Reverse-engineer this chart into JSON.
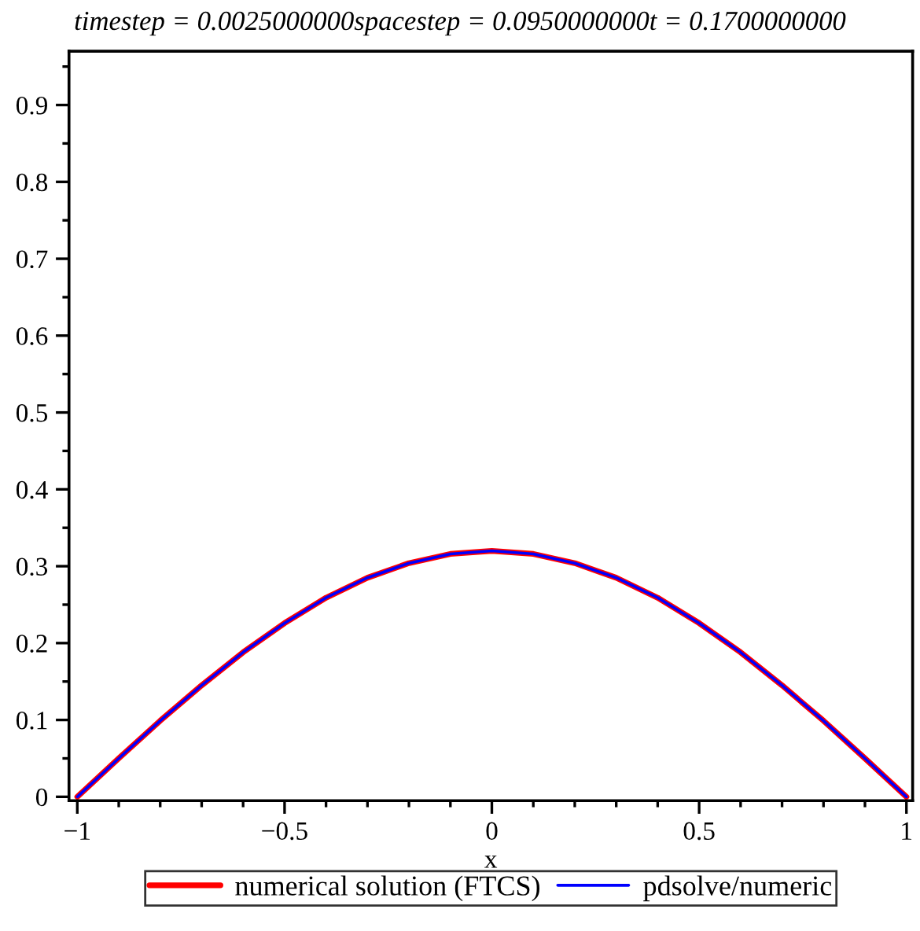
{
  "chart_data": {
    "type": "line",
    "title": "timestep = 0.0025000000spacestep = 0.0950000000t = 0.1700000000",
    "xlabel": "x",
    "x": [
      -1,
      -0.9,
      -0.8,
      -0.7,
      -0.6,
      -0.5,
      -0.4,
      -0.3,
      -0.2,
      -0.1,
      0,
      0.1,
      0.2,
      0.3,
      0.4,
      0.5,
      0.6,
      0.7,
      0.8,
      0.9,
      1
    ],
    "series": [
      {
        "name": "numerical solution (FTCS)",
        "color": "#ff0000",
        "values": [
          0,
          0.05,
          0.099,
          0.145,
          0.188,
          0.226,
          0.259,
          0.285,
          0.304,
          0.316,
          0.32,
          0.316,
          0.304,
          0.285,
          0.259,
          0.226,
          0.188,
          0.145,
          0.099,
          0.05,
          0
        ]
      },
      {
        "name": "pdsolve/numeric",
        "color": "#0000ff",
        "values": [
          0,
          0.05,
          0.099,
          0.145,
          0.188,
          0.226,
          0.259,
          0.285,
          0.304,
          0.316,
          0.32,
          0.316,
          0.304,
          0.285,
          0.259,
          0.226,
          0.188,
          0.145,
          0.099,
          0.05,
          0
        ]
      }
    ],
    "xlim": [
      -1.02,
      1.015
    ],
    "ylim": [
      -0.005,
      0.97
    ],
    "xticks": [
      {
        "value": -1,
        "label": "−1"
      },
      {
        "value": -0.5,
        "label": "−0.5"
      },
      0,
      0.5,
      1
    ],
    "yticks": [
      0,
      0.1,
      0.2,
      0.3,
      0.4,
      0.5,
      0.6,
      0.7,
      0.8,
      0.9
    ],
    "grid": false,
    "legend": "bottom",
    "marker": "none",
    "line_style": "solid"
  }
}
